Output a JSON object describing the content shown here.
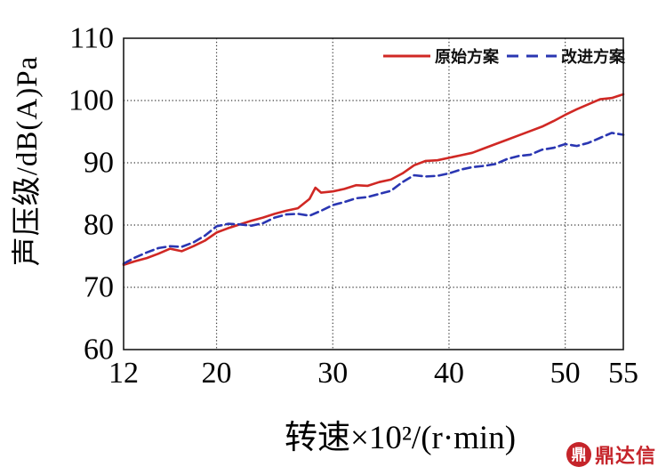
{
  "chart_data": {
    "type": "line",
    "xlabel": "转速×10²/(r·min)",
    "ylabel": "声压级/dB(A)Pa",
    "xlim": [
      12,
      55
    ],
    "ylim": [
      60,
      110
    ],
    "x_ticks": [
      12,
      20,
      30,
      40,
      50,
      55
    ],
    "y_ticks": [
      60,
      70,
      80,
      90,
      100,
      110
    ],
    "grid": true,
    "legend_position": "top-right-inside",
    "series": [
      {
        "name": "原始方案",
        "color": "#d02824",
        "style": "solid",
        "points": [
          [
            12,
            73.6
          ],
          [
            13,
            74.2
          ],
          [
            14,
            74.7
          ],
          [
            15,
            75.4
          ],
          [
            16,
            76.2
          ],
          [
            17,
            75.8
          ],
          [
            18,
            76.6
          ],
          [
            19,
            77.5
          ],
          [
            20,
            78.8
          ],
          [
            21,
            79.5
          ],
          [
            22,
            80.1
          ],
          [
            23,
            80.7
          ],
          [
            24,
            81.2
          ],
          [
            25,
            81.8
          ],
          [
            26,
            82.3
          ],
          [
            27,
            82.7
          ],
          [
            28,
            84.2
          ],
          [
            28.5,
            86.0
          ],
          [
            29,
            85.2
          ],
          [
            30,
            85.4
          ],
          [
            31,
            85.8
          ],
          [
            32,
            86.4
          ],
          [
            33,
            86.3
          ],
          [
            34,
            86.9
          ],
          [
            35,
            87.3
          ],
          [
            36,
            88.3
          ],
          [
            37,
            89.6
          ],
          [
            38,
            90.3
          ],
          [
            39,
            90.4
          ],
          [
            40,
            90.8
          ],
          [
            41,
            91.2
          ],
          [
            42,
            91.6
          ],
          [
            43,
            92.3
          ],
          [
            44,
            93.0
          ],
          [
            45,
            93.7
          ],
          [
            46,
            94.4
          ],
          [
            47,
            95.1
          ],
          [
            48,
            95.8
          ],
          [
            49,
            96.7
          ],
          [
            50,
            97.7
          ],
          [
            51,
            98.6
          ],
          [
            52,
            99.4
          ],
          [
            53,
            100.2
          ],
          [
            54,
            100.4
          ],
          [
            55,
            101.0
          ]
        ]
      },
      {
        "name": "改进方案",
        "color": "#2a36b2",
        "style": "dashed",
        "points": [
          [
            12,
            73.8
          ],
          [
            13,
            74.8
          ],
          [
            14,
            75.6
          ],
          [
            15,
            76.3
          ],
          [
            16,
            76.6
          ],
          [
            17,
            76.5
          ],
          [
            18,
            77.2
          ],
          [
            19,
            78.3
          ],
          [
            20,
            79.8
          ],
          [
            21,
            80.2
          ],
          [
            22,
            80.1
          ],
          [
            23,
            79.9
          ],
          [
            24,
            80.3
          ],
          [
            25,
            81.2
          ],
          [
            26,
            81.7
          ],
          [
            27,
            81.8
          ],
          [
            28,
            81.5
          ],
          [
            29,
            82.3
          ],
          [
            30,
            83.2
          ],
          [
            31,
            83.7
          ],
          [
            32,
            84.3
          ],
          [
            33,
            84.5
          ],
          [
            34,
            85.0
          ],
          [
            35,
            85.5
          ],
          [
            36,
            86.9
          ],
          [
            37,
            88.0
          ],
          [
            38,
            87.8
          ],
          [
            39,
            87.9
          ],
          [
            40,
            88.3
          ],
          [
            41,
            88.9
          ],
          [
            42,
            89.3
          ],
          [
            43,
            89.5
          ],
          [
            44,
            89.8
          ],
          [
            45,
            90.6
          ],
          [
            46,
            91.1
          ],
          [
            47,
            91.3
          ],
          [
            48,
            92.1
          ],
          [
            49,
            92.4
          ],
          [
            50,
            93.0
          ],
          [
            51,
            92.7
          ],
          [
            52,
            93.2
          ],
          [
            53,
            94.0
          ],
          [
            54,
            94.8
          ],
          [
            55,
            94.5
          ]
        ]
      }
    ]
  },
  "watermark": {
    "text": "鼎达信",
    "icon": "dingdaxin-logo",
    "color": "#c5242a",
    "icon_glyph": "鼎"
  }
}
